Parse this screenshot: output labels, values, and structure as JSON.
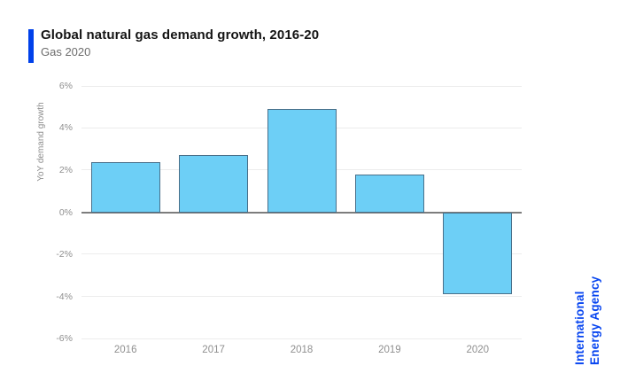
{
  "header": {
    "title": "Global natural gas demand growth, 2016-20",
    "subtitle": "Gas 2020"
  },
  "branding": {
    "line1": "International",
    "line2": "Energy Agency"
  },
  "chart_data": {
    "type": "bar",
    "title": "Global natural gas demand growth, 2016-20",
    "subtitle": "Gas 2020",
    "categories": [
      "2016",
      "2017",
      "2018",
      "2019",
      "2020"
    ],
    "values": [
      2.4,
      2.7,
      4.9,
      1.8,
      -3.9
    ],
    "unit": "%",
    "xlabel": "",
    "ylabel": "YoY demand growth",
    "ylim": [
      -6,
      6
    ],
    "yticks": [
      6,
      4,
      2,
      0,
      -2,
      -4,
      -6
    ],
    "ytick_labels": [
      "6%",
      "4%",
      "2%",
      "0%",
      "-2%",
      "-4%",
      "-6%"
    ],
    "grid": true,
    "legend": false,
    "colors": {
      "bar_fill": "#6DCFF6",
      "bar_border": "#49708A",
      "gridline": "#ECECEC",
      "zero_line": "#7D7D7D",
      "accent": "#0041EA",
      "brand_text": "#0644F0",
      "axis_text": "#8F8F8F",
      "title_text": "#141414",
      "subtitle_text": "#6D6D6D"
    }
  }
}
